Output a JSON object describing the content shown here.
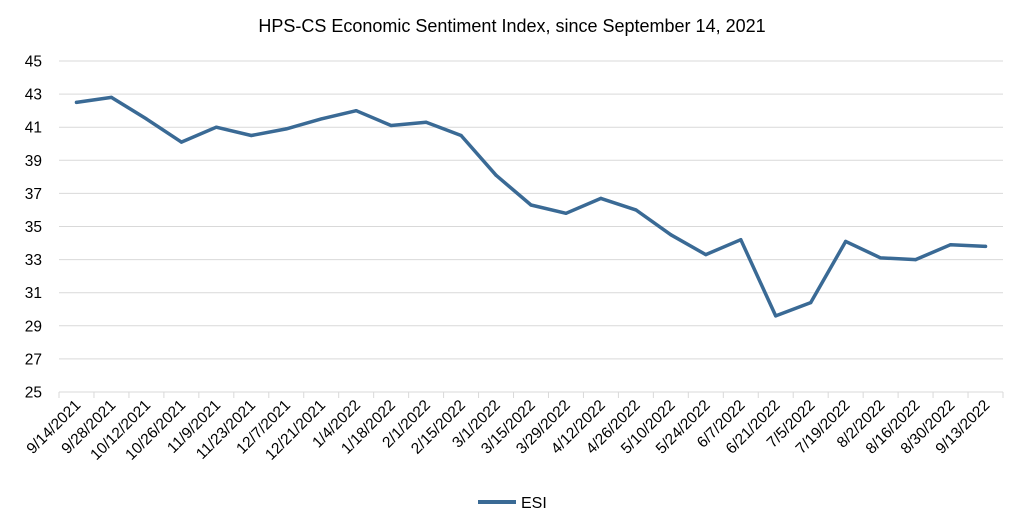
{
  "chart_data": {
    "type": "line",
    "title": "HPS-CS Economic Sentiment Index, since September 14, 2021",
    "xlabel": "",
    "ylabel": "",
    "ylim": [
      25,
      45
    ],
    "yticks": [
      25,
      27,
      29,
      31,
      33,
      35,
      37,
      39,
      41,
      43,
      45
    ],
    "grid": true,
    "legend_position": "bottom",
    "categories": [
      "9/14/2021",
      "9/28/2021",
      "10/12/2021",
      "10/26/2021",
      "11/9/2021",
      "11/23/2021",
      "12/7/2021",
      "12/21/2021",
      "1/4/2022",
      "1/18/2022",
      "2/1/2022",
      "2/15/2022",
      "3/1/2022",
      "3/15/2022",
      "3/29/2022",
      "4/12/2022",
      "4/26/2022",
      "5/10/2022",
      "5/24/2022",
      "6/7/2022",
      "6/21/2022",
      "7/5/2022",
      "7/19/2022",
      "8/2/2022",
      "8/16/2022",
      "8/30/2022",
      "9/13/2022"
    ],
    "series": [
      {
        "name": "ESI",
        "color": "#3a6a95",
        "values": [
          42.5,
          42.8,
          41.5,
          40.1,
          41.0,
          40.5,
          40.9,
          41.5,
          42.0,
          41.1,
          41.3,
          40.5,
          38.1,
          36.3,
          35.8,
          36.7,
          36.0,
          34.5,
          33.3,
          34.2,
          29.6,
          30.4,
          34.1,
          33.1,
          33.0,
          33.9,
          33.8
        ]
      }
    ]
  }
}
